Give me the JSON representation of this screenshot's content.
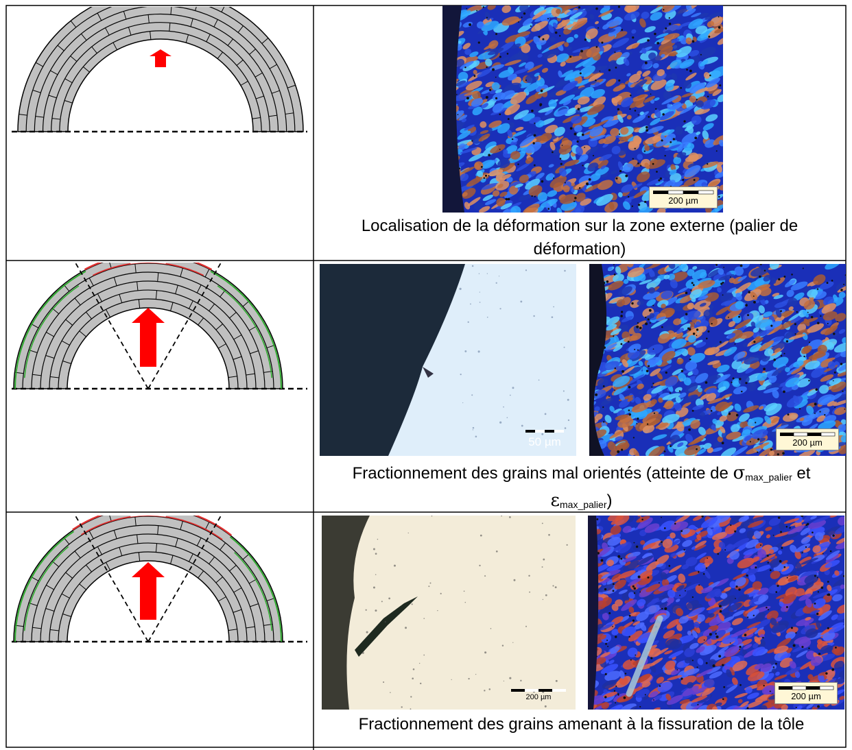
{
  "rows": [
    {
      "caption": "Localisation de la déformation sur la zone externe (palier de déformation)",
      "micrographs": [
        {
          "style": "polarized",
          "scale_label": "200 µm"
        }
      ]
    },
    {
      "caption_prefix": "Fractionnement des grains mal orientés (atteinte de ",
      "sigma_symbol": "σ",
      "sigma_sub": "max_palier",
      "caption_mid": " et",
      "epsilon_symbol": "ε",
      "epsilon_sub": "max_palier",
      "caption_suffix": ")",
      "micrographs": [
        {
          "style": "bright-field-blue",
          "scale_label": "50 µm"
        },
        {
          "style": "polarized",
          "scale_label": "200 µm"
        }
      ]
    },
    {
      "caption": "Fractionnement des grains amenant à la fissuration de la tôle",
      "micrographs": [
        {
          "style": "bright-field-cream",
          "scale_label": "200 µm"
        },
        {
          "style": "polarized-red",
          "scale_label": "200 µm"
        }
      ]
    }
  ],
  "colors": {
    "arc_fill": "#c0c0c0",
    "arrow": "#ff0000",
    "deformed_layer": "#e03030",
    "intact_layer": "#2eab2e"
  }
}
